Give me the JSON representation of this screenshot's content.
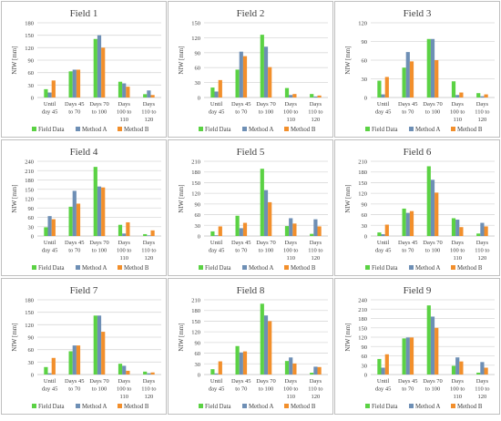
{
  "legend": {
    "items": [
      "Field Data",
      "Method A",
      "Method B"
    ]
  },
  "colors": {
    "field_data": "#5bd244",
    "method_a": "#6e8fb5",
    "method_b": "#f28f2c",
    "grid": "#d9d9d9",
    "border": "#bfbfbf",
    "text": "#404040"
  },
  "chart_data": [
    {
      "type": "bar",
      "title": "Field 1",
      "ylabel": "NIW [mm]",
      "ylim": [
        0,
        180
      ],
      "yticks": [
        0,
        30,
        60,
        90,
        120,
        150,
        180
      ],
      "categories": [
        [
          "Until",
          "day 45"
        ],
        [
          "Days 45",
          "to 70"
        ],
        [
          "Days 70",
          "to 100"
        ],
        [
          "Days",
          "100 to",
          "110"
        ],
        [
          "Days",
          "110 to",
          "120"
        ]
      ],
      "series": [
        {
          "name": "Field Data",
          "values": [
            20,
            63,
            141,
            38,
            8
          ]
        },
        {
          "name": "Method A",
          "values": [
            12,
            67,
            150,
            34,
            17
          ]
        },
        {
          "name": "Method B",
          "values": [
            41,
            67,
            120,
            26,
            6
          ]
        }
      ]
    },
    {
      "type": "bar",
      "title": "Field 2",
      "ylabel": "NIW [mm]",
      "ylim": [
        0,
        150
      ],
      "yticks": [
        0,
        30,
        60,
        90,
        120,
        150
      ],
      "categories": [
        [
          "Until",
          "day 45"
        ],
        [
          "Days 45",
          "to 70"
        ],
        [
          "Days 70",
          "to 100"
        ],
        [
          "Days",
          "100 to",
          "110"
        ],
        [
          "Days",
          "110 to",
          "120"
        ]
      ],
      "series": [
        {
          "name": "Field Data",
          "values": [
            20,
            56,
            126,
            19,
            7
          ]
        },
        {
          "name": "Method A",
          "values": [
            12,
            92,
            102,
            5,
            2
          ]
        },
        {
          "name": "Method B",
          "values": [
            35,
            83,
            61,
            7,
            4
          ]
        }
      ]
    },
    {
      "type": "bar",
      "title": "Field 3",
      "ylabel": "NIW [mm]",
      "ylim": [
        0,
        120
      ],
      "yticks": [
        0,
        30,
        60,
        90,
        120
      ],
      "categories": [
        [
          "Until",
          "day 45"
        ],
        [
          "Days 45",
          "to 70"
        ],
        [
          "Days 70",
          "to 100"
        ],
        [
          "Days",
          "100 to",
          "110"
        ],
        [
          "Days",
          "110 to",
          "120"
        ]
      ],
      "series": [
        {
          "name": "Field Data",
          "values": [
            27,
            48,
            94,
            26,
            7
          ]
        },
        {
          "name": "Method A",
          "values": [
            5,
            73,
            94,
            4,
            2
          ]
        },
        {
          "name": "Method B",
          "values": [
            33,
            58,
            60,
            8,
            5
          ]
        }
      ]
    },
    {
      "type": "bar",
      "title": "Field 4",
      "ylabel": "NIW [mm]",
      "ylim": [
        0,
        240
      ],
      "yticks": [
        0,
        30,
        60,
        90,
        120,
        150,
        180,
        210,
        240
      ],
      "categories": [
        [
          "Until",
          "day 45"
        ],
        [
          "Days 45",
          "to 70"
        ],
        [
          "Days 70",
          "to 100"
        ],
        [
          "Days",
          "100 to",
          "110"
        ],
        [
          "Days",
          "110 to",
          "120"
        ]
      ],
      "series": [
        {
          "name": "Field Data",
          "values": [
            28,
            94,
            222,
            36,
            6
          ]
        },
        {
          "name": "Method A",
          "values": [
            64,
            145,
            159,
            8,
            2
          ]
        },
        {
          "name": "Method B",
          "values": [
            54,
            104,
            156,
            44,
            18
          ]
        }
      ]
    },
    {
      "type": "bar",
      "title": "Field 5",
      "ylabel": "NIW [mm]",
      "ylim": [
        0,
        210
      ],
      "yticks": [
        0,
        30,
        60,
        90,
        120,
        150,
        180,
        210
      ],
      "categories": [
        [
          "Until",
          "day 45"
        ],
        [
          "Days 45",
          "to 70"
        ],
        [
          "Days 70",
          "to 100"
        ],
        [
          "Days",
          "100 to",
          "110"
        ],
        [
          "Days",
          "110 to",
          "120"
        ]
      ],
      "series": [
        {
          "name": "Field Data",
          "values": [
            13,
            57,
            189,
            28,
            6
          ]
        },
        {
          "name": "Method A",
          "values": [
            2,
            22,
            129,
            50,
            47
          ]
        },
        {
          "name": "Method B",
          "values": [
            27,
            37,
            95,
            35,
            27
          ]
        }
      ]
    },
    {
      "type": "bar",
      "title": "Field 6",
      "ylabel": "NIW [mm]",
      "ylim": [
        0,
        210
      ],
      "yticks": [
        0,
        30,
        60,
        90,
        120,
        150,
        180,
        210
      ],
      "categories": [
        [
          "Until",
          "day 45"
        ],
        [
          "Days 45",
          "to 70"
        ],
        [
          "Days 70",
          "to 100"
        ],
        [
          "Days",
          "100 to",
          "110"
        ],
        [
          "Days",
          "110 to",
          "120"
        ]
      ],
      "series": [
        {
          "name": "Field Data",
          "values": [
            10,
            77,
            196,
            50,
            7
          ]
        },
        {
          "name": "Method A",
          "values": [
            5,
            65,
            158,
            46,
            37
          ]
        },
        {
          "name": "Method B",
          "values": [
            32,
            70,
            122,
            25,
            27
          ]
        }
      ]
    },
    {
      "type": "bar",
      "title": "Field 7",
      "ylabel": "NIW [mm]",
      "ylim": [
        0,
        180
      ],
      "yticks": [
        0,
        30,
        60,
        90,
        120,
        150,
        180
      ],
      "categories": [
        [
          "Until",
          "day 45"
        ],
        [
          "Days 45",
          "to 70"
        ],
        [
          "Days 70",
          "to 100"
        ],
        [
          "Days",
          "100 to",
          "110"
        ],
        [
          "Days",
          "110 to",
          "120"
        ]
      ],
      "series": [
        {
          "name": "Field Data",
          "values": [
            18,
            56,
            142,
            26,
            7
          ]
        },
        {
          "name": "Method A",
          "values": [
            3,
            70,
            142,
            21,
            3
          ]
        },
        {
          "name": "Method B",
          "values": [
            40,
            70,
            103,
            9,
            5
          ]
        }
      ]
    },
    {
      "type": "bar",
      "title": "Field 8",
      "ylabel": "NIW [mm]",
      "ylim": [
        0,
        210
      ],
      "yticks": [
        0,
        30,
        60,
        90,
        120,
        150,
        180,
        210
      ],
      "categories": [
        [
          "Until",
          "day 45"
        ],
        [
          "Days 45",
          "to 70"
        ],
        [
          "Days 70",
          "to 100"
        ],
        [
          "Days",
          "100 to",
          "110"
        ],
        [
          "Days",
          "110 to",
          "120"
        ]
      ],
      "series": [
        {
          "name": "Field Data",
          "values": [
            15,
            80,
            199,
            38,
            5
          ]
        },
        {
          "name": "Method A",
          "values": [
            3,
            62,
            166,
            48,
            22
          ]
        },
        {
          "name": "Method B",
          "values": [
            37,
            65,
            150,
            31,
            21
          ]
        }
      ]
    },
    {
      "type": "bar",
      "title": "Field 9",
      "ylabel": "NIW [mm]",
      "ylim": [
        0,
        240
      ],
      "yticks": [
        0,
        30,
        60,
        90,
        120,
        150,
        180,
        210,
        240
      ],
      "categories": [
        [
          "Until",
          "day 45"
        ],
        [
          "Days 45",
          "to 70"
        ],
        [
          "Days 70",
          "to 100"
        ],
        [
          "Days",
          "100 to",
          "110"
        ],
        [
          "Days",
          "110 to",
          "120"
        ]
      ],
      "series": [
        {
          "name": "Field Data",
          "values": [
            50,
            116,
            222,
            28,
            6
          ]
        },
        {
          "name": "Method A",
          "values": [
            22,
            119,
            186,
            55,
            40
          ]
        },
        {
          "name": "Method B",
          "values": [
            65,
            119,
            150,
            42,
            22
          ]
        }
      ]
    }
  ]
}
